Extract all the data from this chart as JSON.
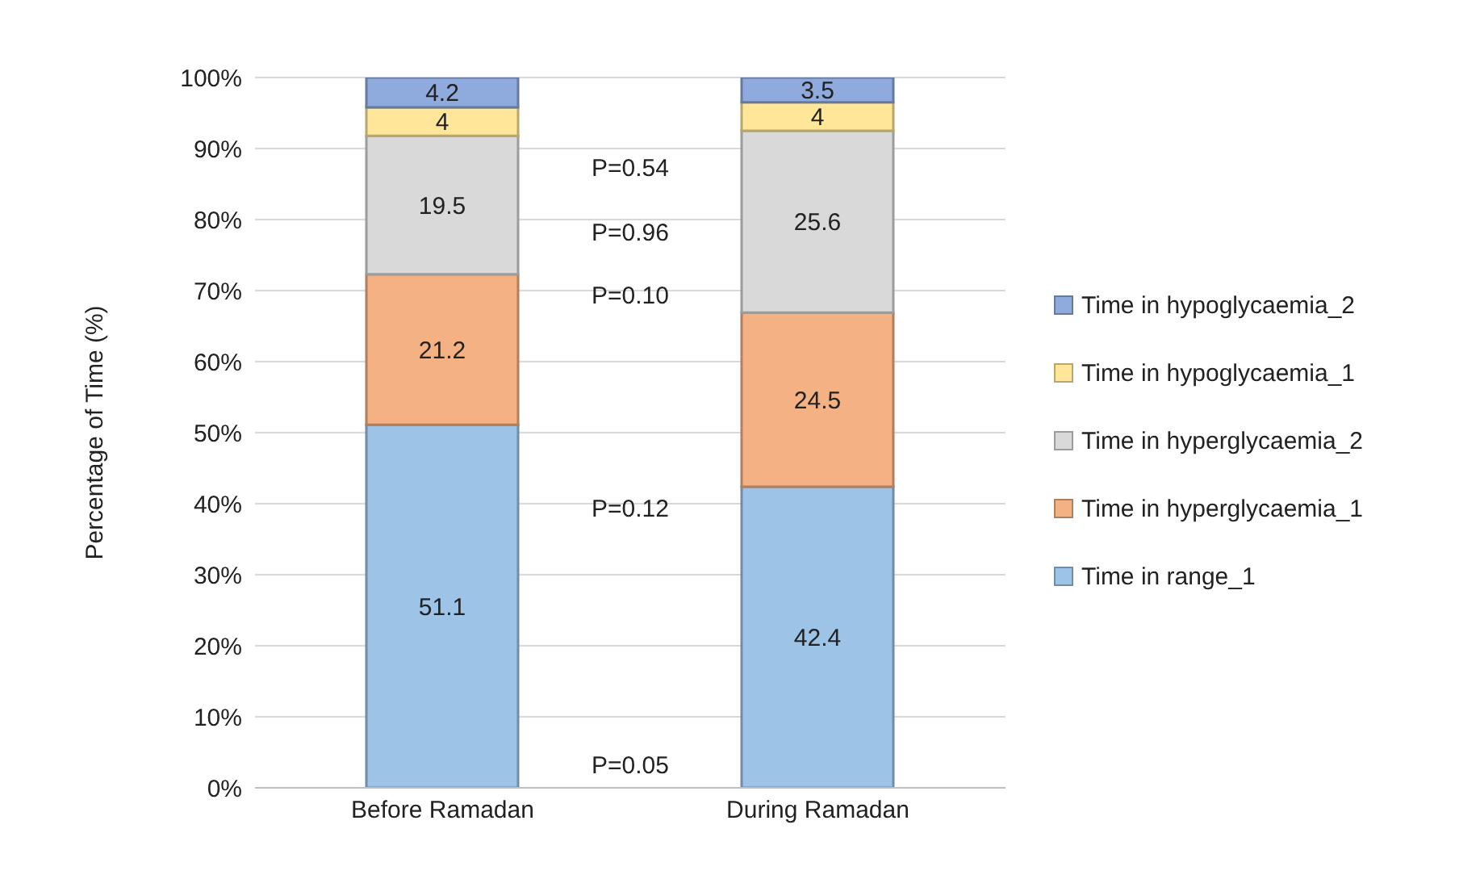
{
  "chart_data": {
    "type": "bar",
    "stacked": true,
    "categories": [
      "Before Ramadan",
      "During Ramadan"
    ],
    "ylabel": "Percentage of Time (%)",
    "series": [
      {
        "name": "Time in range_1",
        "color": "#9dc3e6",
        "values": [
          51.1,
          42.4
        ]
      },
      {
        "name": "Time in hyperglycaemia_1",
        "color": "#f4b183",
        "values": [
          21.2,
          24.5
        ]
      },
      {
        "name": "Time in hyperglycaemia_2",
        "color": "#d9d9d9",
        "values": [
          19.5,
          25.6
        ]
      },
      {
        "name": "Time in hypoglycaemia_1",
        "color": "#ffe699",
        "values": [
          4,
          4
        ]
      },
      {
        "name": "Time in hypoglycaemia_2",
        "color": "#8faadc",
        "values": [
          4.2,
          3.5
        ]
      }
    ],
    "ylim": [
      0,
      100
    ],
    "yticks": [
      {
        "value": 0,
        "label": "0%"
      },
      {
        "value": 10,
        "label": "10%"
      },
      {
        "value": 20,
        "label": "20%"
      },
      {
        "value": 30,
        "label": "30%"
      },
      {
        "value": 40,
        "label": "40%"
      },
      {
        "value": 50,
        "label": "50%"
      },
      {
        "value": 60,
        "label": "60%"
      },
      {
        "value": 70,
        "label": "70%"
      },
      {
        "value": 80,
        "label": "80%"
      },
      {
        "value": 90,
        "label": "90%"
      },
      {
        "value": 100,
        "label": "100%"
      }
    ],
    "grid": "y",
    "legend": "right",
    "data_labels": true,
    "annotations": [
      "P=0.54",
      "P=0.96",
      "P=0.10",
      "P=0.12",
      "P=0.05"
    ]
  }
}
